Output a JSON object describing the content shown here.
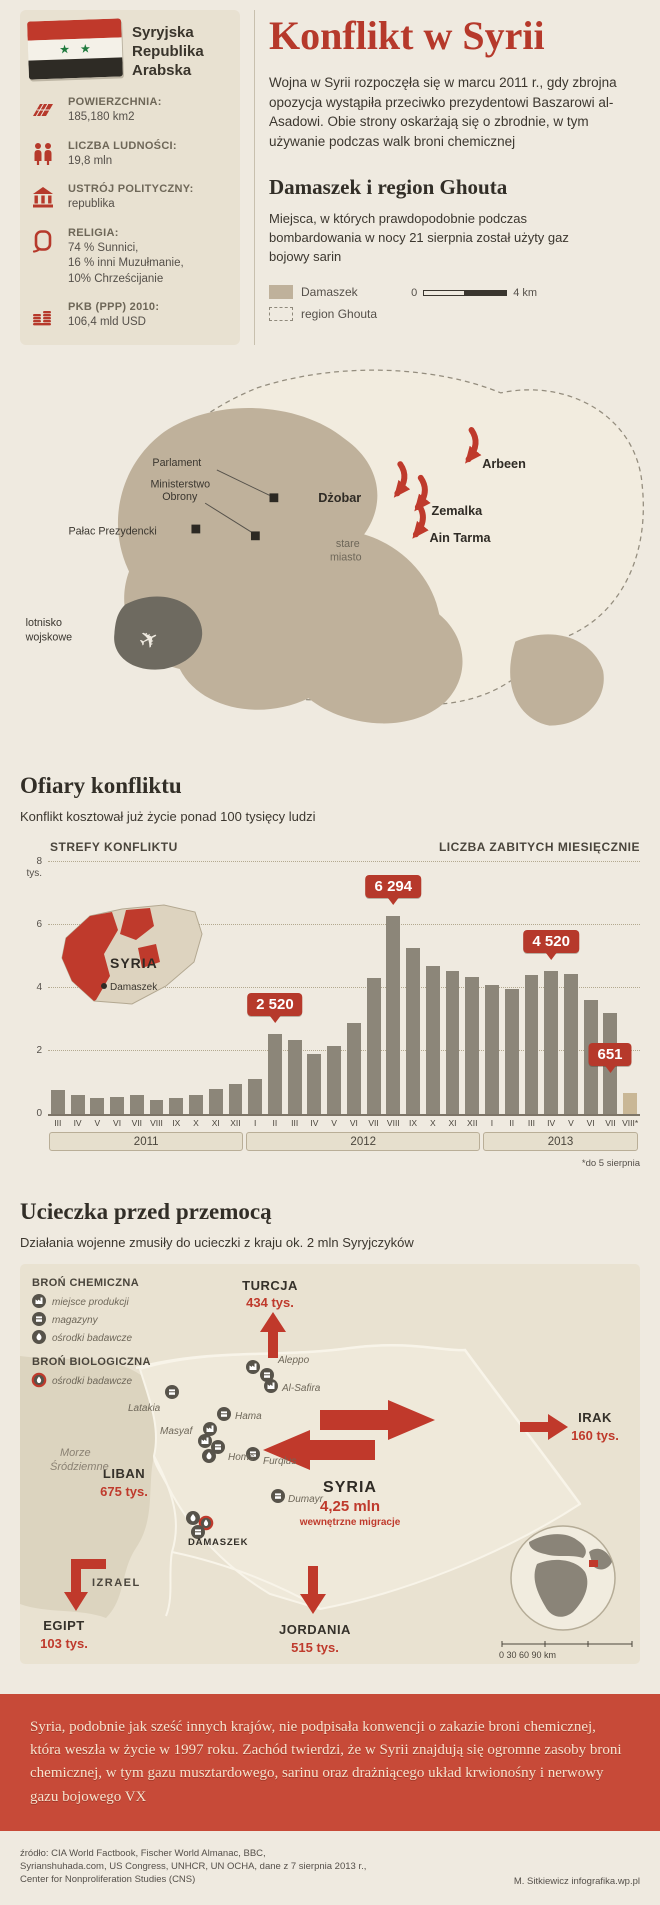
{
  "palette": {
    "bg": "#efeae0",
    "panel": "#e8e1d1",
    "red": "#b6392b",
    "banner_red": "#c74a38",
    "tan": "#bfb19b",
    "bar": "#8c8679",
    "bar_light": "#c9b796"
  },
  "header": {
    "country_name": "Syryjska Republika Arabska",
    "title": "Konflikt w Syrii",
    "intro": "Wojna w Syrii rozpoczęła się w marcu 2011 r., gdy zbrojna opozycja wystąpiła przeciwko prezydentowi Baszarowi al-Asadowi. Obie strony oskarżają się o zbrodnie, w tym używanie podczas walk broni chemicznej"
  },
  "stats": [
    {
      "icon": "area-icon",
      "label": "POWIERZCHNIA:",
      "value": "185,180 km2"
    },
    {
      "icon": "population-icon",
      "label": "LICZBA LUDNOŚCI:",
      "value": "19,8 mln"
    },
    {
      "icon": "government-icon",
      "label": "USTRÓJ POLITYCZNY:",
      "value": "republika"
    },
    {
      "icon": "religion-icon",
      "label": "RELIGIA:",
      "value": "74 % Sunnici,\n16 % inni Muzułmanie,\n10% Chrześcijanie"
    },
    {
      "icon": "gdp-icon",
      "label": "PKB (PPP) 2010:",
      "value": "106,4 mld USD"
    }
  ],
  "ghouta": {
    "heading": "Damaszek i region Ghouta",
    "description": "Miejsca, w których prawdopodobnie podczas bombardowania w nocy 21 sierpnia został użyty gaz bojowy sarin",
    "legend_damascus": "Damaszek",
    "legend_ghouta": "region Ghouta",
    "scale_start": "0",
    "scale_end": "4 km",
    "map_labels": {
      "parlament": "Parlament",
      "ministerstwo_line1": "Ministerstwo",
      "ministerstwo_line2": "Obrony",
      "palac": "Pałac Prezydencki",
      "stare_miasto_line1": "stare",
      "stare_miasto_line2": "miasto",
      "lotnisko_line1": "lotnisko",
      "lotnisko_line2": "wojskowe"
    },
    "attack_sites": {
      "arbeen": "Arbeen",
      "dzobar": "Dżobar",
      "zemalka": "Zemalka",
      "aintarma": "Ain Tarma"
    }
  },
  "casualties": {
    "heading": "Ofiary konfliktu",
    "subtitle": "Konflikt kosztował już życie ponad 100 tysięcy ludzi"
  },
  "chart_data": {
    "type": "bar",
    "title": "LICZBA ZABITYCH MIESIĘCZNIE",
    "zones_label": "STREFY KONFLIKTU",
    "minimap": {
      "country": "SYRIA",
      "city": "Damaszek"
    },
    "y_unit": "tys.",
    "ylim": [
      0,
      8
    ],
    "yticks": [
      0,
      2,
      4,
      6,
      8
    ],
    "groups": [
      {
        "year": "2011",
        "months": [
          "III",
          "IV",
          "V",
          "VI",
          "VII",
          "VIII",
          "IX",
          "X",
          "XI",
          "XII"
        ],
        "values": [
          0.75,
          0.6,
          0.5,
          0.55,
          0.6,
          0.45,
          0.5,
          0.6,
          0.8,
          0.95
        ]
      },
      {
        "year": "2012",
        "months": [
          "I",
          "II",
          "III",
          "IV",
          "V",
          "VI",
          "VII",
          "VIII",
          "IX",
          "X",
          "XI",
          "XII"
        ],
        "values": [
          1.1,
          2.52,
          2.35,
          1.9,
          2.15,
          2.9,
          4.3,
          6.294,
          5.25,
          4.7,
          4.55,
          4.35
        ]
      },
      {
        "year": "2013",
        "months": [
          "I",
          "II",
          "III",
          "IV",
          "V",
          "VI",
          "VII",
          "VIII*"
        ],
        "values": [
          4.1,
          3.95,
          4.4,
          4.52,
          4.45,
          3.6,
          3.2,
          0.651
        ]
      }
    ],
    "callouts": [
      {
        "label": "2 520",
        "flat_index": 11
      },
      {
        "label": "6 294",
        "flat_index": 17
      },
      {
        "label": "4 520",
        "flat_index": 25
      },
      {
        "label": "651",
        "flat_index": 29
      }
    ],
    "footnote": "*do 5 sierpnia"
  },
  "refugees": {
    "heading": "Ucieczka przed przemocą",
    "subtitle": "Działania wojenne zmusiły do ucieczki z kraju ok. 2 mln Syryjczyków",
    "legend": {
      "chemical_title": "BROŃ CHEMICZNA",
      "chemical_items": [
        "miejsce produkcji",
        "magazyny",
        "ośrodki badawcze"
      ],
      "biological_title": "BROŃ BIOLOGICZNA",
      "biological_items": [
        "ośrodki badawcze"
      ]
    },
    "flows": {
      "turcja": {
        "name": "TURCJA",
        "value": "434 tys."
      },
      "irak": {
        "name": "IRAK",
        "value": "160 tys."
      },
      "liban": {
        "name": "LIBAN",
        "value": "675 tys."
      },
      "egipt": {
        "name": "EGIPT",
        "value": "103 tys."
      },
      "jordania": {
        "name": "JORDANIA",
        "value": "515 tys."
      }
    },
    "internal": {
      "name": "SYRIA",
      "value": "4,25 mln",
      "label": "wewnętrzne migracje"
    },
    "cities": {
      "aleppo": "Aleppo",
      "alsafira": "Al-Safira",
      "latakia": "Latakia",
      "hama": "Hama",
      "masyaf": "Masyaf",
      "homs": "Homs",
      "furqlus": "Furqlus",
      "dumayr": "Dumayr",
      "damaszek": "DAMASZEK"
    },
    "sea_line1": "Morze",
    "sea_line2": "Śródziemne",
    "israel_label": "IZRAEL",
    "globe_scale": "0   30  60  90 km"
  },
  "banner": {
    "text": "Syria, podobnie jak sześć innych krajów, nie podpisała konwencji o zakazie broni chemicznej, która weszła w życie w 1997 roku. Zachód twierdzi, że w Syrii znajdują się ogromne zasoby broni chemicznej, w tym gazu musztardowego, sarinu oraz drażniącego układ krwionośny i nerwowy gazu bojowego VX"
  },
  "footer": {
    "source": "źródło: CIA World Factbook, Fischer World Almanac, BBC,\nSyrianshuhada.com, US Congress, UNHCR, UN OCHA, dane z 7 sierpnia 2013 r.,\nCenter for Nonproliferation Studies (CNS)",
    "credit": "M. Sitkiewicz infografika.wp.pl"
  }
}
